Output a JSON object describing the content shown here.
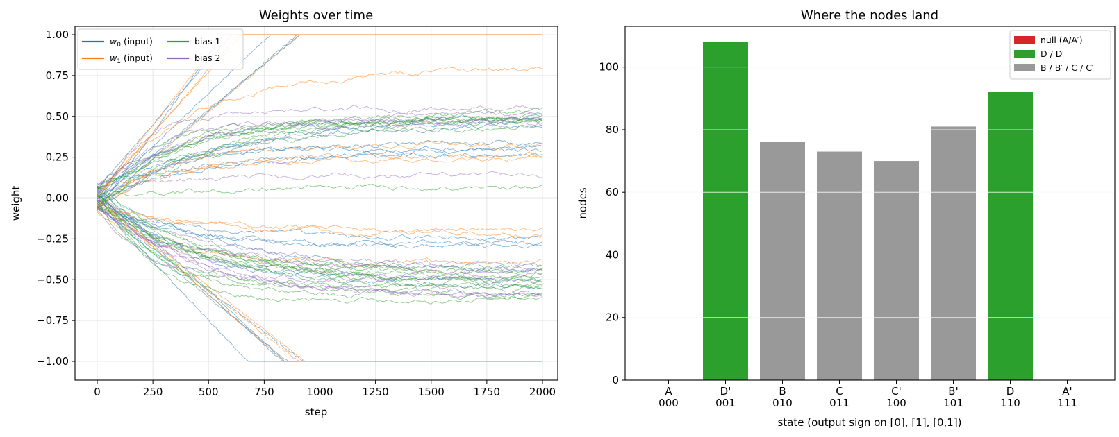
{
  "chart_data": [
    {
      "type": "line",
      "title": "Weights over time",
      "xlabel": "step",
      "ylabel": "weight",
      "xlim": [
        0,
        2000
      ],
      "ylim": [
        -1.0,
        1.0
      ],
      "xticks": [
        0,
        250,
        500,
        750,
        1000,
        1250,
        1500,
        1750,
        2000
      ],
      "xtick_labels": [
        "0",
        "250",
        "500",
        "750",
        "1000",
        "1250",
        "1500",
        "1750",
        "2000"
      ],
      "yticks": [
        -1.0,
        -0.75,
        -0.5,
        -0.25,
        0.0,
        0.25,
        0.5,
        0.75,
        1.0
      ],
      "ytick_labels": [
        "−1.00",
        "−0.75",
        "−0.50",
        "−0.25",
        "0.00",
        "0.25",
        "0.50",
        "0.75",
        "1.00"
      ],
      "grid": true,
      "legend_position": "top-left",
      "legend": [
        {
          "sym": "w",
          "sub": "0",
          "text": " (input)",
          "color": "#1f77b4"
        },
        {
          "sym": "w",
          "sub": "1",
          "text": " (input)",
          "color": "#ff7f0e"
        },
        {
          "sym": "",
          "sub": "",
          "text": "bias 1",
          "color": "#2ca02c"
        },
        {
          "sym": "",
          "sub": "",
          "text": "bias 2",
          "color": "#9467bd"
        }
      ],
      "series_groups": [
        {
          "name": "w0 (input)",
          "color": "#1f77b4",
          "finals": [
            1.0,
            1.0,
            1.0,
            1.0,
            1.0,
            0.33,
            0.3,
            0.28,
            0.3,
            0.5,
            0.48,
            0.46,
            -0.25,
            -0.28,
            -0.3,
            -0.45,
            -0.5,
            -0.55,
            -1.0,
            -1.0,
            -1.0,
            -1.0,
            -1.0
          ]
        },
        {
          "name": "w1 (input)",
          "color": "#ff7f0e",
          "finals": [
            1.0,
            1.0,
            1.0,
            1.0,
            0.8,
            0.32,
            0.26,
            0.24,
            -0.2,
            -0.22,
            -0.39,
            -1.0,
            -1.0,
            -1.0
          ]
        },
        {
          "name": "bias 1",
          "color": "#2ca02c",
          "finals": [
            0.53,
            0.5,
            0.48,
            0.47,
            0.46,
            0.51,
            0.49,
            0.45,
            0.07,
            -0.42,
            -0.44,
            -0.46,
            -0.5,
            -0.52,
            -0.54,
            -0.56,
            -0.58,
            -0.6,
            -0.62,
            -0.55,
            -0.48
          ]
        },
        {
          "name": "bias 2",
          "color": "#9467bd",
          "finals": [
            0.55,
            0.52,
            0.48,
            0.5,
            0.46,
            0.14,
            -0.42,
            -0.45,
            -0.47,
            -0.58,
            -0.6,
            -0.62,
            -0.43,
            -0.5
          ]
        }
      ]
    },
    {
      "type": "bar",
      "title": "Where the nodes land",
      "xlabel": "state   (output sign on  [0], [1], [0,1])",
      "ylabel": "nodes",
      "ylim": [
        0,
        113
      ],
      "yticks": [
        0,
        20,
        40,
        60,
        80,
        100
      ],
      "ytick_labels": [
        "0",
        "20",
        "40",
        "60",
        "80",
        "100"
      ],
      "grid": true,
      "legend_position": "top-right",
      "categories": [
        "A",
        "D'",
        "B",
        "C",
        "C'",
        "B'",
        "D",
        "A'"
      ],
      "codes": [
        "000",
        "001",
        "010",
        "011",
        "100",
        "101",
        "110",
        "111"
      ],
      "values": [
        0,
        108,
        76,
        73,
        70,
        81,
        92,
        0
      ],
      "bar_colors": [
        "#d62728",
        "#2ca02c",
        "#999999",
        "#999999",
        "#999999",
        "#999999",
        "#2ca02c",
        "#d62728"
      ],
      "legend": [
        {
          "label": "null (A/A′)",
          "color": "#d62728"
        },
        {
          "label": "D / D′",
          "color": "#2ca02c"
        },
        {
          "label": "B / B′ / C / C′",
          "color": "#999999"
        }
      ]
    }
  ]
}
